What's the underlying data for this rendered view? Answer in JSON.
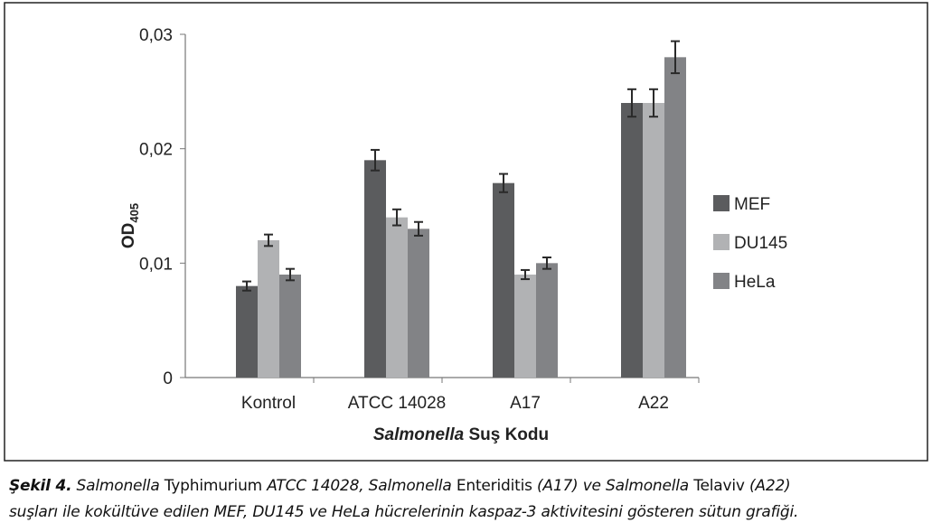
{
  "chart_data": {
    "type": "bar",
    "title": "",
    "xlabel_italic": "Salmonella",
    "xlabel_rest": " Suş Kodu",
    "ylabel": "OD",
    "ylabel_sub": "405",
    "ylim": [
      0,
      0.03
    ],
    "yticks": [
      0,
      0.01,
      0.02,
      0.03
    ],
    "ytick_labels": [
      "0",
      "0,01",
      "0,02",
      "0,03"
    ],
    "categories": [
      "Kontrol",
      "ATCC 14028",
      "A17",
      "A22"
    ],
    "legend_position": "right",
    "grid": false,
    "series": [
      {
        "name": "MEF",
        "color": "#5b5c5e",
        "values": [
          0.008,
          0.019,
          0.017,
          0.024
        ],
        "errors": [
          0.0004,
          0.0009,
          0.0008,
          0.0012
        ]
      },
      {
        "name": "DU145",
        "color": "#b1b2b4",
        "values": [
          0.012,
          0.014,
          0.009,
          0.024
        ],
        "errors": [
          0.0005,
          0.0007,
          0.0004,
          0.0012
        ]
      },
      {
        "name": "HeLa",
        "color": "#828386",
        "values": [
          0.009,
          0.013,
          0.01,
          0.028
        ],
        "errors": [
          0.0005,
          0.0006,
          0.0005,
          0.0014
        ]
      }
    ]
  },
  "caption": {
    "line1": [
      {
        "t": "Şekil 4.",
        "s": "bi"
      },
      {
        "t": " Salmonella",
        "s": "it"
      },
      {
        "t": " Typhimurium ",
        "s": ""
      },
      {
        "t": "ATCC 14028, Salmonella",
        "s": "it"
      },
      {
        "t": " Enteriditis ",
        "s": ""
      },
      {
        "t": "(A17) ve Salmonella",
        "s": "it"
      },
      {
        "t": " Telaviv  ",
        "s": ""
      },
      {
        "t": "(A22)",
        "s": "it"
      }
    ],
    "line2": [
      {
        "t": "suşları ile kokültüve edilen MEF, DU145 ve HeLa hücrelerinin kaspaz-3 aktivitesini gösteren sütun grafiği.",
        "s": "it"
      }
    ]
  }
}
